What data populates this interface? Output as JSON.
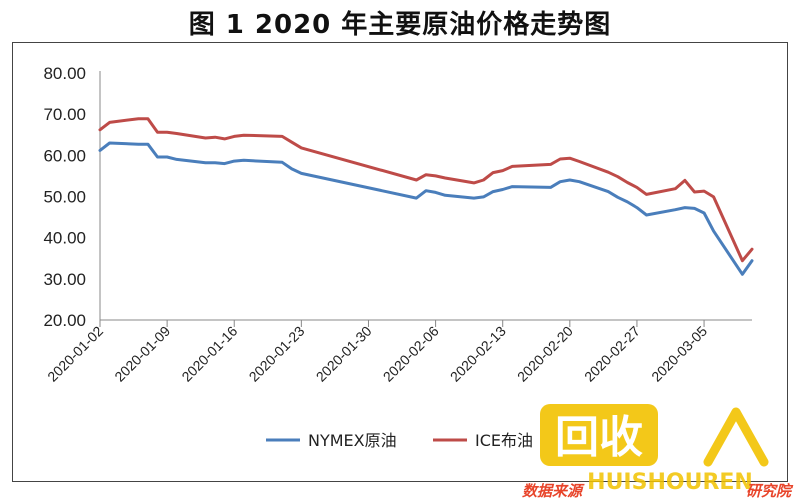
{
  "title": "图 1  2020 年主要原油价格走势图",
  "chart_data": {
    "type": "line",
    "title": "图 1  2020 年主要原油价格走势图",
    "ylim": [
      20,
      80
    ],
    "yticks": [
      "20.00",
      "30.00",
      "40.00",
      "50.00",
      "60.00",
      "70.00",
      "80.00"
    ],
    "xticks": [
      "2020-01-02",
      "2020-01-09",
      "2020-01-16",
      "2020-01-23",
      "2020-01-30",
      "2020-02-06",
      "2020-02-13",
      "2020-02-20",
      "2020-02-27",
      "2020-03-05"
    ],
    "x": [
      "2020-01-02",
      "2020-01-03",
      "2020-01-06",
      "2020-01-07",
      "2020-01-08",
      "2020-01-09",
      "2020-01-10",
      "2020-01-13",
      "2020-01-14",
      "2020-01-15",
      "2020-01-16",
      "2020-01-17",
      "2020-01-21",
      "2020-01-22",
      "2020-01-23",
      "2020-02-04",
      "2020-02-05",
      "2020-02-06",
      "2020-02-07",
      "2020-02-10",
      "2020-02-11",
      "2020-02-12",
      "2020-02-13",
      "2020-02-14",
      "2020-02-18",
      "2020-02-19",
      "2020-02-20",
      "2020-02-21",
      "2020-02-24",
      "2020-02-25",
      "2020-02-26",
      "2020-02-27",
      "2020-02-28",
      "2020-03-02",
      "2020-03-03",
      "2020-03-04",
      "2020-03-05",
      "2020-03-06",
      "2020-03-09",
      "2020-03-10"
    ],
    "series": [
      {
        "name": "NYMEX原油",
        "color": "#4a7ebb",
        "values": [
          61.2,
          63.0,
          62.7,
          62.7,
          59.6,
          59.6,
          59.0,
          58.2,
          58.2,
          58.0,
          58.6,
          58.8,
          58.3,
          56.7,
          55.6,
          49.6,
          51.4,
          51.0,
          50.3,
          49.6,
          49.9,
          51.2,
          51.7,
          52.4,
          52.2,
          53.6,
          54.0,
          53.6,
          51.2,
          49.8,
          48.7,
          47.3,
          45.5,
          46.8,
          47.3,
          47.1,
          46.0,
          41.6,
          31.1,
          34.4
        ]
      },
      {
        "name": "ICE布油",
        "color": "#be4b48",
        "values": [
          66.2,
          68.0,
          68.9,
          68.9,
          65.6,
          65.6,
          65.3,
          64.2,
          64.4,
          64.0,
          64.6,
          64.9,
          64.6,
          63.2,
          61.8,
          54.0,
          55.3,
          55.0,
          54.5,
          53.3,
          54.0,
          55.8,
          56.3,
          57.3,
          57.8,
          59.1,
          59.3,
          58.5,
          55.9,
          54.8,
          53.4,
          52.2,
          50.5,
          51.9,
          53.9,
          51.1,
          51.3,
          49.9,
          34.4,
          37.2
        ]
      }
    ],
    "grid": false,
    "legend": "bottom"
  },
  "watermark": {
    "logo_text": "回收",
    "url_text": "HUISHOUREN",
    "footer_text": "数据来源",
    "footer_text2": "研究院",
    "brand_color": "#e8452b",
    "accent_color": "#f2c200"
  }
}
